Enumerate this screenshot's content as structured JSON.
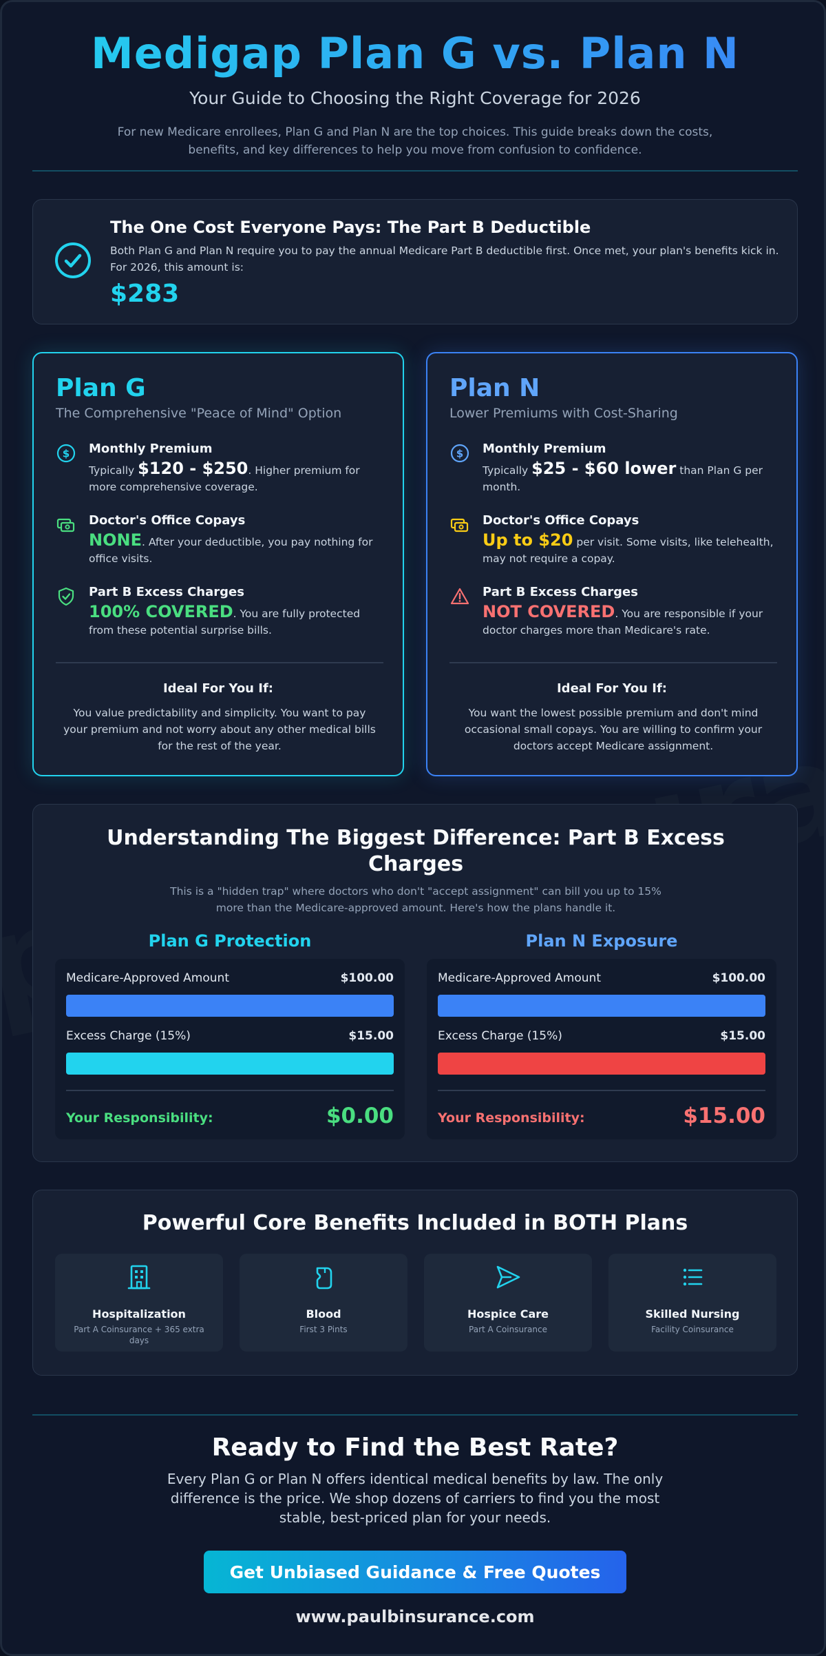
{
  "header": {
    "title": "Medigap Plan G vs. Plan N",
    "subtitle": "Your Guide to Choosing the Right Coverage for 2026",
    "intro": "For new Medicare enrollees, Plan G and Plan N are the top choices. This guide breaks down the costs, benefits, and key differences to help you move from confusion to confidence."
  },
  "watermark": "paulbinsurance",
  "deductible": {
    "icon": "check-circle-icon",
    "heading": "The One Cost Everyone Pays: The Part B Deductible",
    "text": "Both Plan G and Plan N require you to pay the annual Medicare Part B deductible first. Once met, your plan's benefits kick in. For 2026, this amount is:",
    "amount": "$283"
  },
  "plans": {
    "g": {
      "name": "Plan G",
      "tagline": "The Comprehensive \"Peace of Mind\" Option",
      "premium": {
        "heading": "Monthly Premium",
        "pre": "Typically ",
        "value": "$120 - $250",
        "post": ". Higher premium for more comprehensive coverage.",
        "icon": "dollar-circle-icon"
      },
      "copays": {
        "heading": "Doctor's Office Copays",
        "value": "NONE",
        "post": ". After your deductible, you pay nothing for office visits.",
        "icon": "cash-icon"
      },
      "excess": {
        "heading": "Part B Excess Charges",
        "value": "100% COVERED",
        "post": ". You are fully protected from these potential surprise bills.",
        "icon": "shield-check-icon"
      },
      "ideal_heading": "Ideal For You If:",
      "ideal_text": "You value predictability and simplicity. You want to pay your premium and not worry about any other medical bills for the rest of the year."
    },
    "n": {
      "name": "Plan N",
      "tagline": "Lower Premiums with Cost-Sharing",
      "premium": {
        "heading": "Monthly Premium",
        "pre": "Typically ",
        "value": "$25 - $60 lower",
        "post": " than Plan G per month.",
        "icon": "dollar-circle-icon"
      },
      "copays": {
        "heading": "Doctor's Office Copays",
        "value": "Up to $20",
        "post": " per visit. Some visits, like telehealth, may not require a copay.",
        "icon": "cash-icon"
      },
      "excess": {
        "heading": "Part B Excess Charges",
        "value": "NOT COVERED",
        "post": ". You are responsible if your doctor charges more than Medicare's rate.",
        "icon": "warning-triangle-icon"
      },
      "ideal_heading": "Ideal For You If:",
      "ideal_text": "You want the lowest possible premium and don't mind occasional small copays. You are willing to confirm your doctors accept Medicare assignment."
    }
  },
  "excess_section": {
    "heading": "Understanding The Biggest Difference: Part B Excess Charges",
    "subtext": "This is a \"hidden trap\" where doctors who don't \"accept assignment\" can bill you up to 15% more than the Medicare-approved amount. Here's how the plans handle it.",
    "g": {
      "title": "Plan G Protection",
      "approved_label": "Medicare-Approved Amount",
      "approved_value": "$100.00",
      "excess_label": "Excess Charge (15%)",
      "excess_value": "$15.00",
      "resp_label": "Your Responsibility:",
      "resp_value": "$0.00"
    },
    "n": {
      "title": "Plan N Exposure",
      "approved_label": "Medicare-Approved Amount",
      "approved_value": "$100.00",
      "excess_label": "Excess Charge (15%)",
      "excess_value": "$15.00",
      "resp_label": "Your Responsibility:",
      "resp_value": "$15.00"
    }
  },
  "benefits": {
    "heading": "Powerful Core Benefits Included in BOTH Plans",
    "items": [
      {
        "name": "Hospitalization",
        "sub": "Part A Coinsurance + 365 extra days",
        "icon": "hospital-icon"
      },
      {
        "name": "Blood",
        "sub": "First 3 Pints",
        "icon": "blood-bag-icon"
      },
      {
        "name": "Hospice Care",
        "sub": "Part A Coinsurance",
        "icon": "send-icon"
      },
      {
        "name": "Skilled Nursing",
        "sub": "Facility Coinsurance",
        "icon": "list-icon"
      }
    ]
  },
  "cta": {
    "heading": "Ready to Find the Best Rate?",
    "text": "Every Plan G or Plan N offers identical medical benefits by law. The only difference is the price. We shop dozens of carriers to find you the most stable, best-priced plan for your needs.",
    "button": "Get Unbiased Guidance & Free Quotes",
    "url": "www.paulbinsurance.com"
  },
  "colors": {
    "cyan": "#22d3ee",
    "blue": "#3b82f6",
    "green": "#4ade80",
    "red": "#ef4444",
    "yellow": "#facc15"
  }
}
